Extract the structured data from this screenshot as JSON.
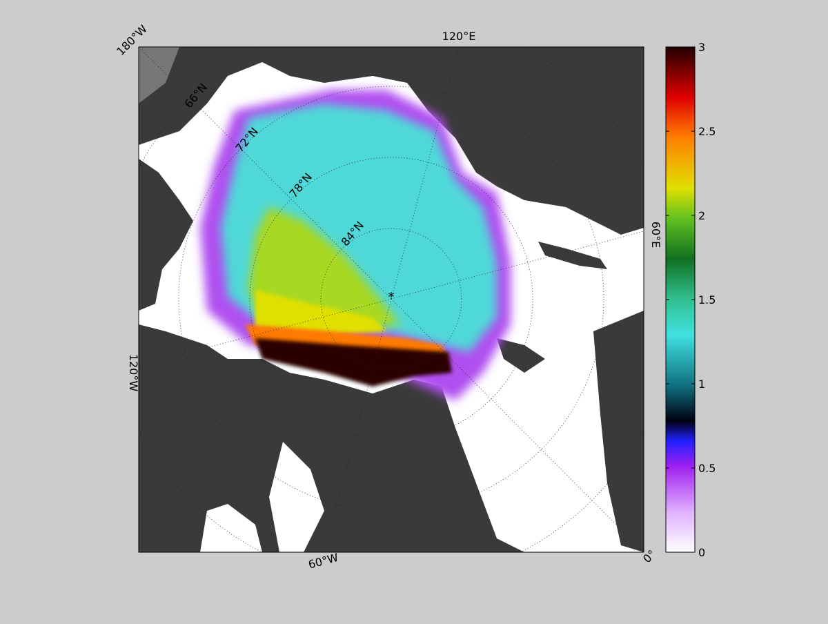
{
  "map": {
    "lon_labels": [
      "180°W",
      "120°E",
      "60°E",
      "0°",
      "60°W",
      "120°W"
    ],
    "lat_labels": [
      "66°N",
      "72°N",
      "78°N",
      "84°N"
    ]
  },
  "colorbar": {
    "range": [
      0,
      3
    ],
    "ticks": [
      0,
      0.5,
      1,
      1.5,
      2,
      2.5,
      3
    ]
  }
}
